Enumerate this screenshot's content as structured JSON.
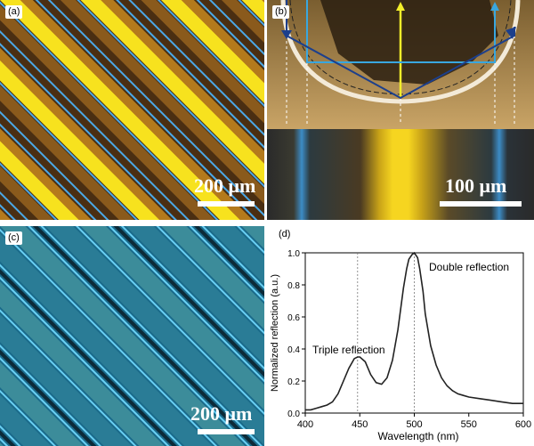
{
  "panels": {
    "a": {
      "tag": "(a)",
      "scale_label": "200 μm"
    },
    "b": {
      "tag": "(b)",
      "scale_label": "100 μm"
    },
    "c": {
      "tag": "(c)",
      "scale_label": "200 μm"
    },
    "d": {
      "tag": "(d)"
    }
  },
  "colors": {
    "stripe_yellow": "#f7e21e",
    "groove_blue": "#4aa8e8",
    "ray_yellow": "#f2ee2a",
    "ray_light_blue": "#39a7df",
    "ray_dark_blue": "#1c3f8c",
    "sem_tone": "#b9924e",
    "spectrum_line": "#222222"
  },
  "chart_data": {
    "type": "line",
    "title": "",
    "xlabel": "Wavelength (nm)",
    "ylabel": "Normalized reflection (a.u.)",
    "xlim": [
      400,
      600
    ],
    "ylim": [
      0,
      1.0
    ],
    "x_ticks": [
      "400",
      "450",
      "500",
      "550",
      "600"
    ],
    "y_ticks": [
      "0.0",
      "0.2",
      "0.4",
      "0.6",
      "0.8",
      "1.0"
    ],
    "grid": false,
    "series": [
      {
        "x": [
          400,
          405,
          410,
          415,
          420,
          425,
          430,
          435,
          440,
          445,
          448,
          450,
          455,
          460,
          465,
          470,
          475,
          480,
          485,
          490,
          493,
          495,
          498,
          500,
          503,
          505,
          508,
          510,
          515,
          520,
          525,
          530,
          535,
          540,
          545,
          550,
          560,
          570,
          580,
          590,
          600
        ],
        "y": [
          0.02,
          0.02,
          0.03,
          0.04,
          0.05,
          0.07,
          0.12,
          0.2,
          0.28,
          0.34,
          0.35,
          0.35,
          0.32,
          0.24,
          0.19,
          0.18,
          0.22,
          0.33,
          0.52,
          0.78,
          0.9,
          0.96,
          0.99,
          1.0,
          0.97,
          0.9,
          0.76,
          0.62,
          0.42,
          0.3,
          0.22,
          0.17,
          0.14,
          0.12,
          0.11,
          0.1,
          0.09,
          0.08,
          0.07,
          0.06,
          0.06
        ]
      }
    ],
    "annotations": [
      {
        "text": "Double reflection",
        "x": 500,
        "y": 0.6
      },
      {
        "text": "Triple reflection",
        "x": 448,
        "y": 0.6
      }
    ],
    "reference_lines_x": [
      448,
      500
    ]
  }
}
